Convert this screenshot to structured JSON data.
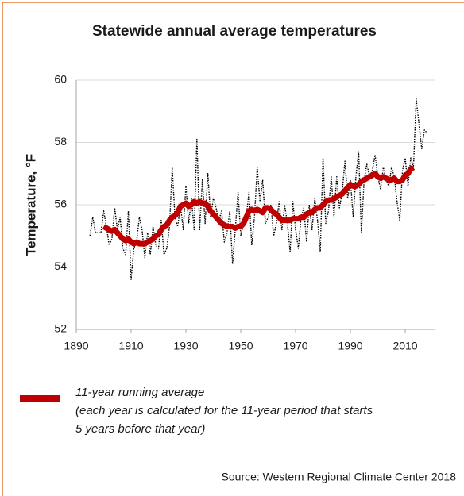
{
  "chart_data": {
    "type": "line",
    "title": "Statewide annual average temperatures",
    "y_label": "Temperature, °F",
    "source": "Source: Western Regional Climate Center 2018",
    "legend_note": [
      "(each year is calculated for the 11-year period that starts",
      "5 years before that year)"
    ],
    "xlim": [
      1890,
      2021
    ],
    "xticks": [
      1890,
      1910,
      1930,
      1950,
      1970,
      1990,
      2010
    ],
    "ylim": [
      52,
      60
    ],
    "yticks": [
      52,
      54,
      56,
      58,
      60
    ],
    "grid": true,
    "x": [
      1895,
      1896,
      1897,
      1898,
      1899,
      1900,
      1901,
      1902,
      1903,
      1904,
      1905,
      1906,
      1907,
      1908,
      1909,
      1910,
      1911,
      1912,
      1913,
      1914,
      1915,
      1916,
      1917,
      1918,
      1919,
      1920,
      1921,
      1922,
      1923,
      1924,
      1925,
      1926,
      1927,
      1928,
      1929,
      1930,
      1931,
      1932,
      1933,
      1934,
      1935,
      1936,
      1937,
      1938,
      1939,
      1940,
      1941,
      1942,
      1943,
      1944,
      1945,
      1946,
      1947,
      1948,
      1949,
      1950,
      1951,
      1952,
      1953,
      1954,
      1955,
      1956,
      1957,
      1958,
      1959,
      1960,
      1961,
      1962,
      1963,
      1964,
      1965,
      1966,
      1967,
      1968,
      1969,
      1970,
      1971,
      1972,
      1973,
      1974,
      1975,
      1976,
      1977,
      1978,
      1979,
      1980,
      1981,
      1982,
      1983,
      1984,
      1985,
      1986,
      1987,
      1988,
      1989,
      1990,
      1991,
      1992,
      1993,
      1994,
      1995,
      1996,
      1997,
      1998,
      1999,
      2000,
      2001,
      2002,
      2003,
      2004,
      2005,
      2006,
      2007,
      2008,
      2009,
      2010,
      2011,
      2012,
      2013,
      2014,
      2015,
      2016,
      2017,
      2018
    ],
    "series": [
      {
        "color": "#000000",
        "line_style": "dotted",
        "values": [
          55.0,
          55.6,
          55.1,
          55.1,
          55.1,
          55.8,
          55.3,
          54.7,
          54.9,
          55.9,
          55.2,
          55.6,
          54.6,
          54.4,
          55.8,
          53.6,
          54.6,
          54.8,
          55.6,
          55.2,
          54.3,
          55.1,
          54.4,
          55.3,
          54.7,
          54.6,
          55.5,
          54.4,
          54.6,
          55.3,
          57.2,
          55.6,
          55.3,
          56.0,
          55.2,
          56.6,
          55.4,
          56.2,
          55.2,
          58.1,
          55.2,
          56.8,
          55.4,
          57.0,
          55.6,
          56.2,
          55.9,
          55.5,
          55.8,
          54.8,
          55.1,
          55.8,
          54.1,
          55.2,
          56.4,
          55.0,
          55.4,
          55.6,
          56.4,
          54.7,
          55.6,
          57.2,
          56.1,
          56.8,
          55.4,
          55.6,
          56.0,
          55.0,
          55.4,
          56.1,
          55.2,
          56.0,
          55.4,
          54.5,
          56.1,
          55.2,
          54.6,
          55.6,
          55.9,
          54.8,
          56.0,
          55.2,
          56.2,
          55.5,
          54.5,
          57.5,
          55.4,
          55.8,
          56.9,
          55.6,
          56.9,
          55.9,
          56.4,
          57.4,
          56.2,
          56.8,
          55.6,
          56.9,
          57.7,
          55.1,
          56.8,
          57.3,
          56.9,
          57.1,
          57.6,
          56.9,
          56.5,
          57.2,
          56.8,
          56.6,
          57.2,
          56.9,
          56.1,
          55.5,
          57.1,
          57.5,
          56.6,
          57.5,
          57.2,
          59.4,
          58.6,
          57.8,
          58.4,
          58.3
        ]
      },
      {
        "name": "11-year running average",
        "color": "#c00000",
        "line_style": "solid",
        "values": [
          null,
          null,
          null,
          null,
          null,
          55.3,
          55.25,
          55.2,
          55.15,
          55.2,
          55.1,
          55.0,
          54.9,
          54.85,
          54.9,
          54.8,
          54.75,
          54.8,
          54.75,
          54.75,
          54.75,
          54.8,
          54.85,
          54.9,
          55.0,
          55.05,
          55.2,
          55.3,
          55.35,
          55.5,
          55.6,
          55.65,
          55.75,
          55.95,
          56.0,
          56.05,
          55.95,
          56.0,
          56.1,
          56.05,
          56.1,
          56.05,
          56.05,
          55.95,
          55.8,
          55.7,
          55.6,
          55.5,
          55.4,
          55.35,
          55.3,
          55.3,
          55.3,
          55.25,
          55.3,
          55.3,
          55.4,
          55.6,
          55.8,
          55.85,
          55.8,
          55.85,
          55.8,
          55.75,
          55.9,
          55.9,
          55.85,
          55.75,
          55.7,
          55.6,
          55.5,
          55.5,
          55.5,
          55.5,
          55.55,
          55.55,
          55.55,
          55.6,
          55.6,
          55.7,
          55.75,
          55.75,
          55.85,
          55.9,
          55.9,
          56.0,
          56.1,
          56.15,
          56.15,
          56.2,
          56.25,
          56.3,
          56.35,
          56.45,
          56.55,
          56.65,
          56.6,
          56.6,
          56.65,
          56.75,
          56.8,
          56.85,
          56.9,
          56.95,
          57.0,
          56.9,
          56.85,
          56.9,
          56.85,
          56.8,
          56.8,
          56.85,
          56.75,
          56.75,
          56.8,
          56.95,
          57.0,
          57.15,
          57.2,
          null,
          null,
          null,
          null,
          null
        ]
      }
    ]
  }
}
